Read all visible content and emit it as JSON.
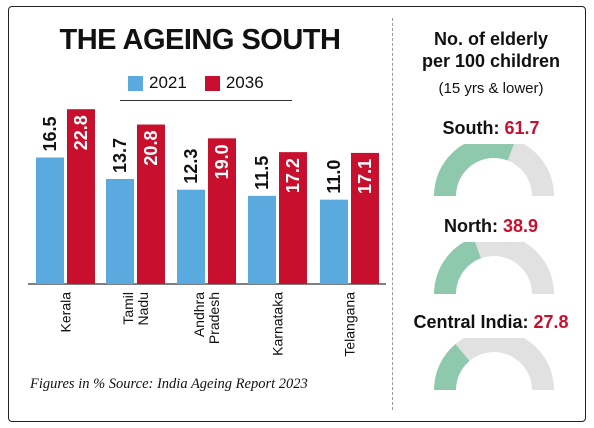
{
  "title": "THE AGEING SOUTH",
  "legend": [
    {
      "label": "2021",
      "color": "#5aaadf"
    },
    {
      "label": "2036",
      "color": "#c8102e"
    }
  ],
  "chart_data": {
    "type": "bar",
    "categories": [
      "Kerala",
      "Tamil Nadu",
      "Andhra Pradesh",
      "Karnataka",
      "Telangana"
    ],
    "category_lines": [
      [
        "Kerala"
      ],
      [
        "Tamil",
        "Nadu"
      ],
      [
        "Andhra",
        "Pradesh"
      ],
      [
        "Karnataka"
      ],
      [
        "Telangana"
      ]
    ],
    "series": [
      {
        "name": "2021",
        "values": [
          16.5,
          13.7,
          12.3,
          11.5,
          11.0
        ],
        "labels": [
          "16.5",
          "13.7",
          "12.3",
          "11.5",
          "11.0"
        ]
      },
      {
        "name": "2036",
        "values": [
          22.8,
          20.8,
          19.0,
          17.2,
          17.1
        ],
        "labels": [
          "22.8",
          "20.8",
          "19.0",
          "17.2",
          "17.1"
        ]
      }
    ],
    "ylim": [
      0,
      24
    ],
    "grid": false,
    "legend_position": "top"
  },
  "footnote": "Figures in % Source: India Ageing Report 2023",
  "right_panel": {
    "title_line1": "No. of elderly",
    "title_line2": "per 100 children",
    "subtitle": "(15 yrs & lower)",
    "gauges": [
      {
        "name": "South:",
        "value": 61.7,
        "value_label": "61.7"
      },
      {
        "name": "North:",
        "value": 38.9,
        "value_label": "38.9"
      },
      {
        "name": "Central India:",
        "value": 27.8,
        "value_label": "27.8"
      }
    ],
    "gauge_fill_color": "#8fc9ad",
    "gauge_empty_color": "#e1e1e1"
  }
}
